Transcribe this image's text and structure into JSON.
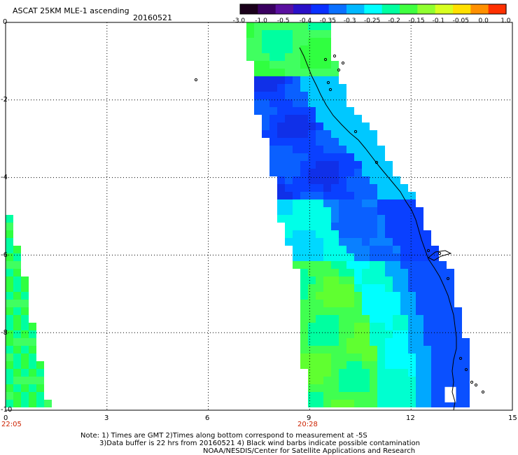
{
  "header": {
    "title": "ASCAT 25KM MLE-1 ascending",
    "date": "20160521"
  },
  "colorbar": {
    "labels": [
      "-3.0",
      "-1.0",
      "-0.5",
      "-0.4",
      "-0.35",
      "-0.3",
      "-0.25",
      "-0.2",
      "-0.15",
      "-0.1",
      "-0.05",
      "0.0",
      "1.0"
    ],
    "colors": [
      "#1a001a",
      "#3a0060",
      "#5a10a0",
      "#2a10c8",
      "#0a30ff",
      "#0a70ff",
      "#00b8ff",
      "#00ffff",
      "#00ffa0",
      "#40ff40",
      "#90ff30",
      "#d8ff20",
      "#ffe000",
      "#ff9000",
      "#ff3000"
    ]
  },
  "axes": {
    "x_ticks": [
      "0",
      "3",
      "6",
      "9",
      "12",
      "15"
    ],
    "y_ticks": [
      "0",
      "-2",
      "-4",
      "-6",
      "-8",
      "-10"
    ],
    "time_labels": [
      "22:05",
      "20:28"
    ]
  },
  "footer": {
    "line1": "Note: 1) Times are GMT 2)Times along bottom correspond to measurement at -5S",
    "line2": "3)Data buffer is 22 hrs from 20160521 4) Black wind barbs indicate possible contamination",
    "line3": "NOAA/NESDIS/Center for Satellite Applications and Research"
  }
}
